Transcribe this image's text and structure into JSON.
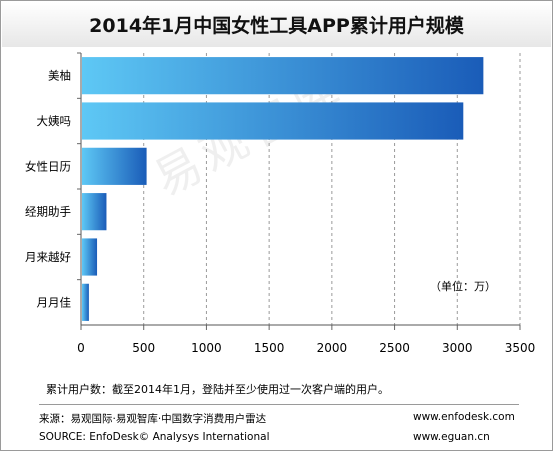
{
  "chart_data": {
    "type": "bar",
    "orientation": "horizontal",
    "title": "2014年1月中国女性工具APP累计用户规模",
    "categories": [
      "美柚",
      "大姨吗",
      "女性日历",
      "经期助手",
      "月来越好",
      "月月佳"
    ],
    "values": [
      3200,
      3040,
      515,
      195,
      120,
      55
    ],
    "xticks": [
      "0",
      "500",
      "1000",
      "1500",
      "2000",
      "2500",
      "3000",
      "3500"
    ],
    "xlim": [
      0,
      3500
    ],
    "unit_label": "（单位：万）",
    "grid": "vertical dashed",
    "bar_gradient": [
      "#5ec8f5",
      "#1a5cb8"
    ]
  },
  "watermark": "易观智库",
  "footnote": "累计用户数：截至2014年1月，登陆并至少使用过一次客户端的用户。",
  "source": {
    "line1": "来源：易观国际·易观智库·中国数字消费用户雷达",
    "line2": "SOURCE: EnfoDesk© Analysys International",
    "url1": "www.enfodesk.com",
    "url2": "www.eguan.cn"
  }
}
